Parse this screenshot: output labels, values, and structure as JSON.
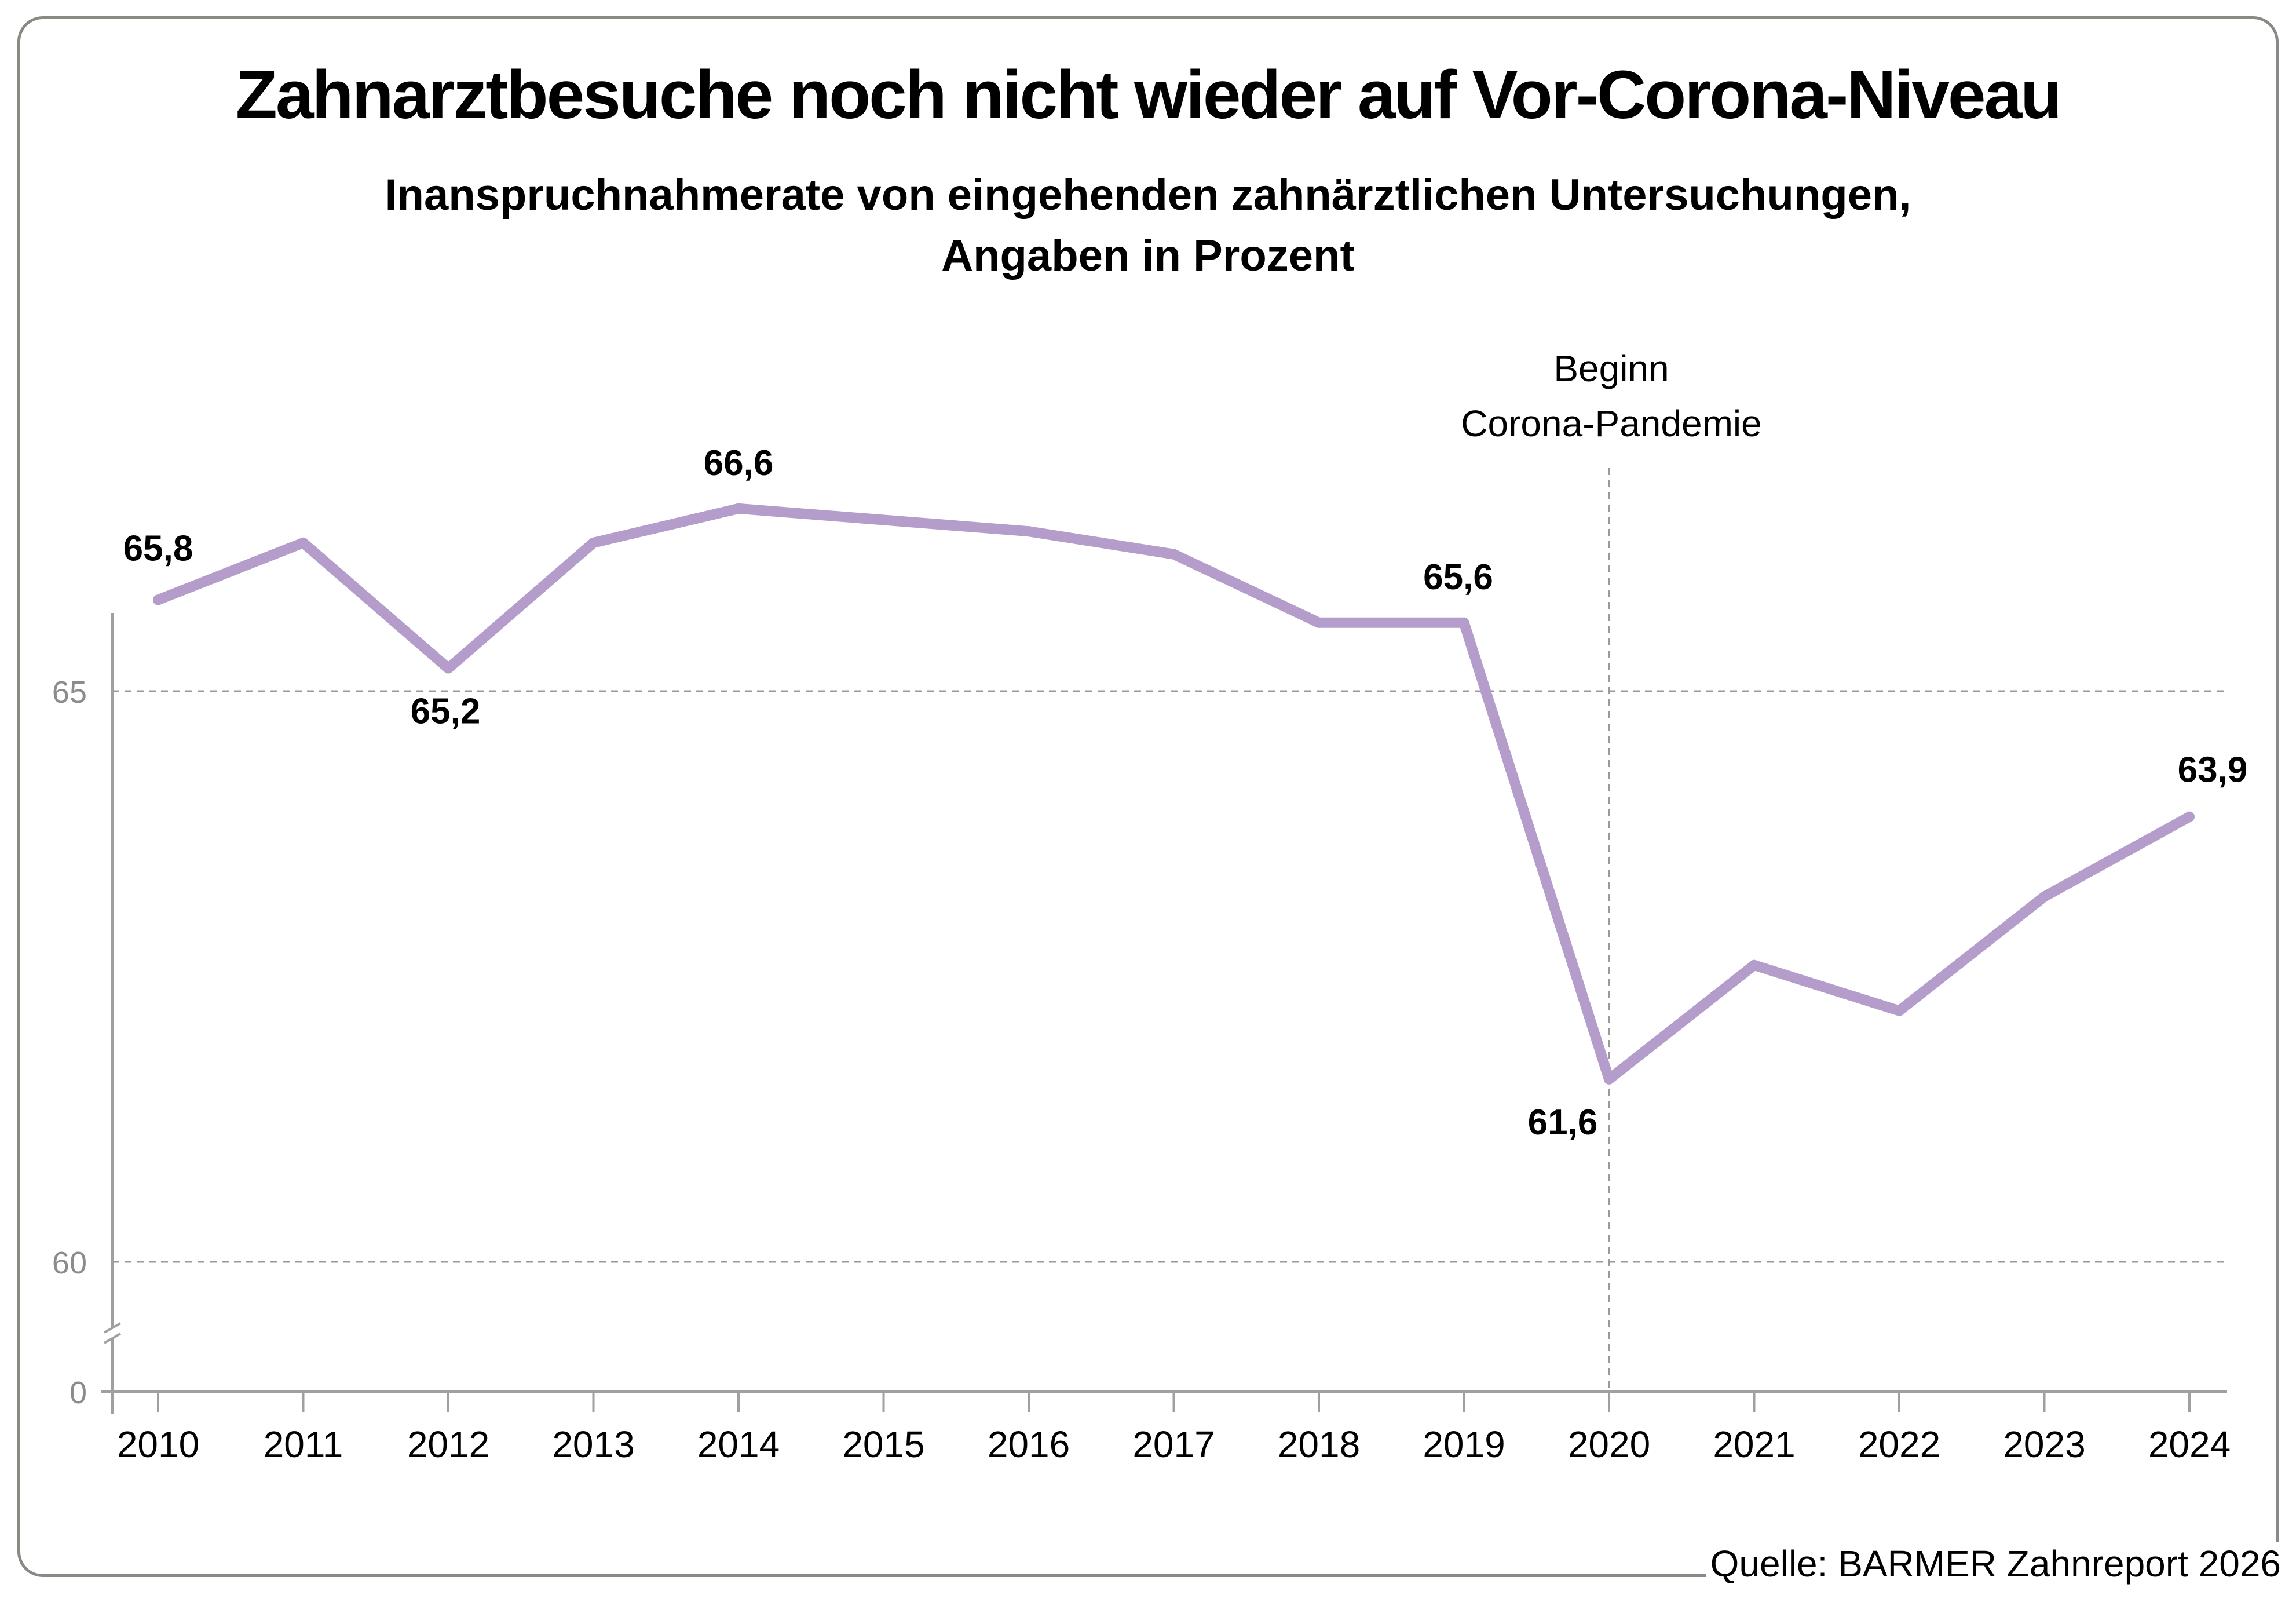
{
  "chart_data": {
    "type": "line",
    "title": "Zahnarztbesuche noch nicht wieder auf Vor-Corona-Niveau",
    "subtitle": [
      "Inanspruchnahmerate von eingehenden zahnärztlichen Untersuchungen,",
      "Angaben in Prozent"
    ],
    "categories": [
      "2010",
      "2011",
      "2012",
      "2013",
      "2014",
      "2015",
      "2016",
      "2017",
      "2018",
      "2019",
      "2020",
      "2021",
      "2022",
      "2023",
      "2024"
    ],
    "series": [
      {
        "values": [
          65.8,
          66.3,
          65.2,
          66.3,
          66.6,
          66.5,
          66.4,
          66.2,
          65.6,
          65.6,
          61.6,
          62.6,
          62.2,
          63.2,
          63.9
        ],
        "color": "#b49dcb"
      }
    ],
    "data_labels": [
      {
        "category": "2010",
        "text": "65,8"
      },
      {
        "category": "2012",
        "text": "65,2"
      },
      {
        "category": "2014",
        "text": "66,6"
      },
      {
        "category": "2019",
        "text": "65,6"
      },
      {
        "category": "2020",
        "text": "61,6"
      },
      {
        "category": "2024",
        "text": "63,9"
      }
    ],
    "y_ticks": [
      {
        "value": 65,
        "label": "65"
      },
      {
        "value": 60,
        "label": "60"
      },
      {
        "value": 0,
        "label": "0"
      }
    ],
    "axis_break": true,
    "ylim": [
      0,
      67
    ],
    "grid": true,
    "annotation": {
      "category": "2020",
      "lines": [
        "Beginn",
        "Corona-Pandemie"
      ]
    },
    "source": "Quelle: BARMER Zahnreport 2026"
  }
}
